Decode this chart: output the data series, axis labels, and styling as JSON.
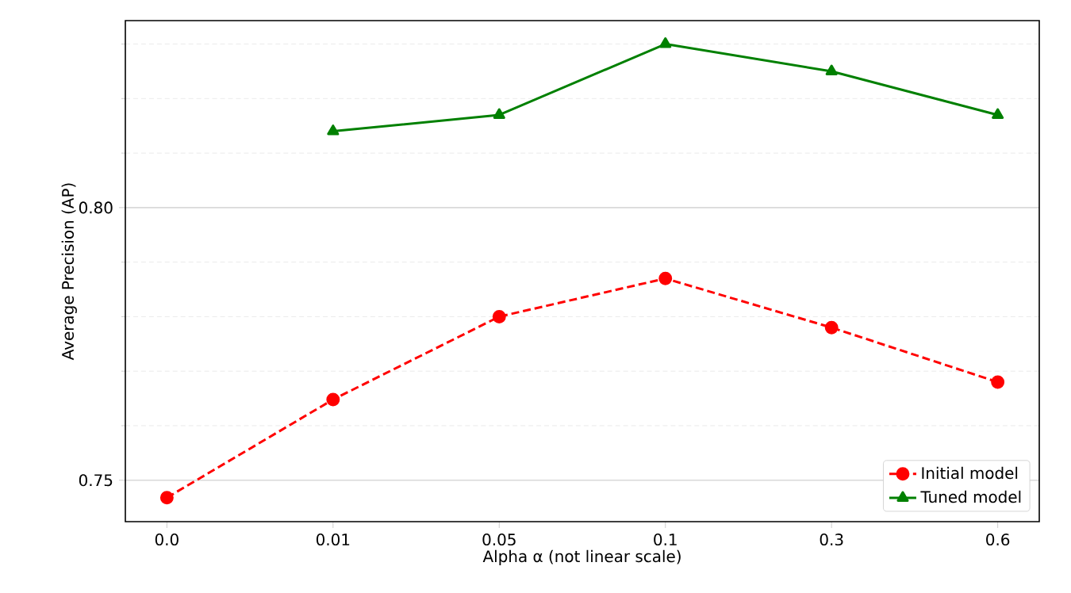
{
  "chart_data": {
    "type": "line",
    "xlabel": "Alpha α (not linear scale)",
    "ylabel": "Average Precision (AP)",
    "categories": [
      "0.0",
      "0.01",
      "0.05",
      "0.1",
      "0.3",
      "0.6"
    ],
    "series": [
      {
        "name": "Initial model",
        "color": "#ff0000",
        "marker": "circle",
        "line_style": "dashed",
        "values": [
          0.7468,
          0.7648,
          0.78,
          0.787,
          0.778,
          0.768
        ]
      },
      {
        "name": "Tuned model",
        "color": "#008000",
        "marker": "triangle",
        "line_style": "solid",
        "values": [
          null,
          0.814,
          0.817,
          0.83,
          0.825,
          0.817
        ]
      }
    ],
    "ylim": [
      0.7424,
      0.8343
    ],
    "yticks": [
      0.75,
      {
        "value": 0.76,
        "label": null
      },
      {
        "value": 0.77,
        "label": null
      },
      {
        "value": 0.78,
        "label": null
      },
      {
        "value": 0.79,
        "label": null
      },
      {
        "value": 0.8,
        "label": "0.80"
      },
      {
        "value": 0.81,
        "label": null
      },
      {
        "value": 0.82,
        "label": null
      },
      {
        "value": 0.83,
        "label": null
      }
    ],
    "grid": "y",
    "legend": "bottom right"
  }
}
